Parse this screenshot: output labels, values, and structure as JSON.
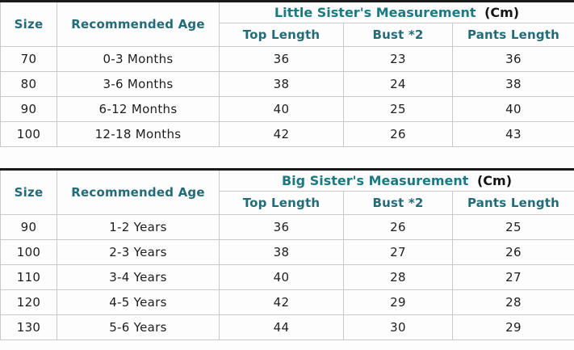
{
  "chart_data": [
    {
      "type": "table",
      "title": "Little Sister's Measurement",
      "unit": "(Cm)",
      "size_header": "Size",
      "age_header": "Recommended Age",
      "measure_columns": [
        "Top Length",
        "Bust *2",
        "Pants Length"
      ],
      "rows": [
        [
          "70",
          "0-3 Months",
          "36",
          "23",
          "36"
        ],
        [
          "80",
          "3-6 Months",
          "38",
          "24",
          "38"
        ],
        [
          "90",
          "6-12 Months",
          "40",
          "25",
          "40"
        ],
        [
          "100",
          "12-18 Months",
          "42",
          "26",
          "43"
        ]
      ]
    },
    {
      "type": "table",
      "title": "Big Sister's Measurement",
      "unit": "(Cm)",
      "size_header": "Size",
      "age_header": "Recommended Age",
      "measure_columns": [
        "Top Length",
        "Bust *2",
        "Pants Length"
      ],
      "rows": [
        [
          "90",
          "1-2 Years",
          "36",
          "26",
          "25"
        ],
        [
          "100",
          "2-3 Years",
          "38",
          "27",
          "26"
        ],
        [
          "110",
          "3-4 Years",
          "40",
          "28",
          "27"
        ],
        [
          "120",
          "4-5 Years",
          "42",
          "29",
          "28"
        ],
        [
          "130",
          "5-6 Years",
          "44",
          "30",
          "29"
        ]
      ]
    }
  ],
  "colors": {
    "header_text": "#236b77",
    "title_text": "#1a7a82",
    "body_text": "#1d1d1d",
    "cell_border": "#c9c9c9",
    "table_top_border": "#1b1b1b",
    "background": "#fdfdfd"
  }
}
